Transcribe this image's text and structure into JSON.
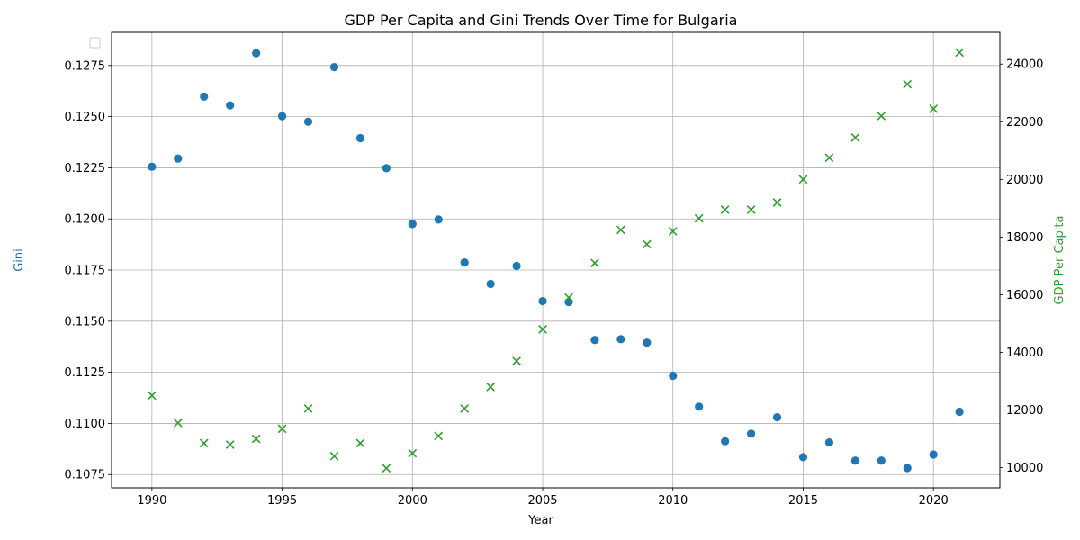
{
  "chart_data": {
    "type": "scatter",
    "title": "GDP Per Capita and Gini Trends Over Time for Bulgaria",
    "xlabel": "Year",
    "ylabel_left": "Gini",
    "ylabel_right": "GDP Per Capita",
    "xlim": [
      1988.45,
      2022.55
    ],
    "ylim_left": [
      0.10685,
      0.12912
    ],
    "ylim_right": [
      9300,
      25100
    ],
    "x_ticks": [
      1990,
      1995,
      2000,
      2005,
      2010,
      2015,
      2020
    ],
    "y_left_ticks": [
      "0.1075",
      "0.1100",
      "0.1125",
      "0.1150",
      "0.1175",
      "0.1200",
      "0.1225",
      "0.1250",
      "0.1275"
    ],
    "y_right_ticks": [
      "10000",
      "12000",
      "14000",
      "16000",
      "18000",
      "20000",
      "22000",
      "24000"
    ],
    "grid": true,
    "legend_placement": "upper-left (empty)",
    "x": [
      1990,
      1991,
      1992,
      1993,
      1994,
      1995,
      1996,
      1997,
      1998,
      1999,
      2000,
      2001,
      2002,
      2003,
      2004,
      2005,
      2006,
      2007,
      2008,
      2009,
      2010,
      2011,
      2012,
      2013,
      2014,
      2015,
      2016,
      2017,
      2018,
      2019,
      2020,
      2021
    ],
    "series": [
      {
        "axis": "left",
        "marker": "circle",
        "color": "#1f77b4",
        "values": [
          0.12255,
          0.12295,
          0.12598,
          0.12555,
          0.1281,
          0.12502,
          0.12475,
          0.12742,
          0.12395,
          0.12248,
          0.11975,
          0.11997,
          0.11787,
          0.11682,
          0.1177,
          0.11598,
          0.11594,
          0.11408,
          0.11412,
          0.11395,
          0.11233,
          0.11082,
          0.10913,
          0.1095,
          0.1103,
          0.10835,
          0.10907,
          0.10818,
          0.10818,
          0.10782,
          0.10848,
          0.11057
        ]
      },
      {
        "axis": "right",
        "marker": "x",
        "color": "#2ca02c",
        "values": [
          12500,
          11550,
          10850,
          10800,
          11000,
          11350,
          12050,
          10400,
          10850,
          9980,
          10500,
          11100,
          12050,
          12800,
          13700,
          14800,
          15900,
          17100,
          18250,
          17750,
          18200,
          18650,
          18950,
          18950,
          19200,
          20000,
          20750,
          21450,
          22200,
          23300,
          22450,
          24400
        ]
      }
    ]
  }
}
